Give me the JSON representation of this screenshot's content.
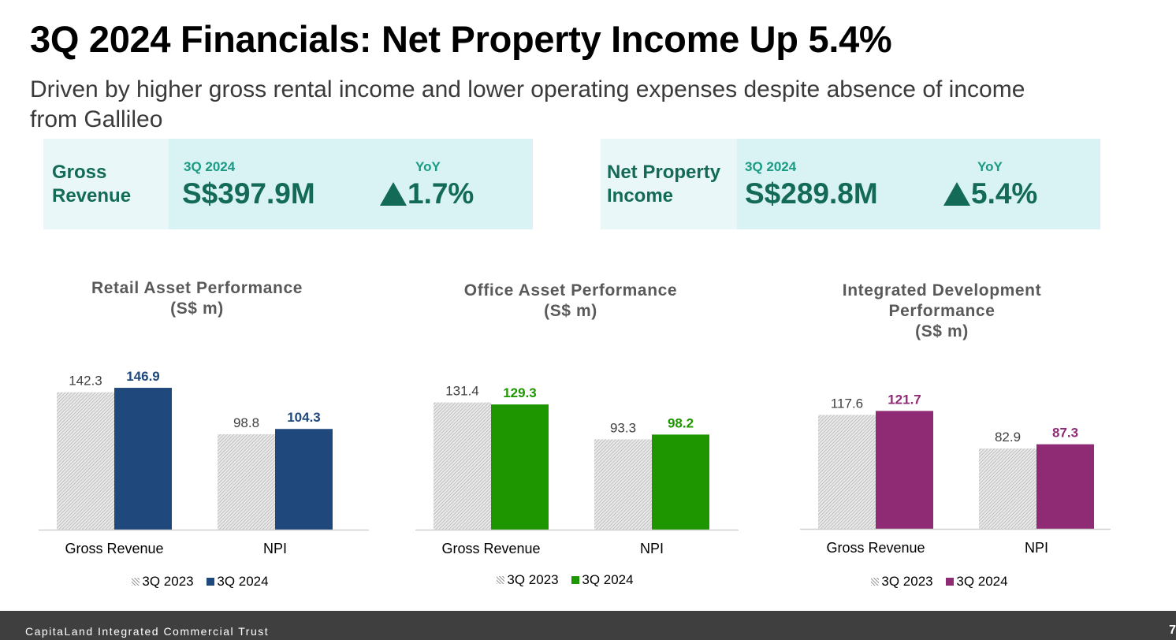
{
  "slide": {
    "title": "3Q 2024 Financials: Net Property Income Up 5.4%",
    "subtitle": "Driven by higher gross rental income and lower operating expenses despite absence of income from Gallileo",
    "kpis": [
      {
        "label_line1": "Gross",
        "label_line2": "Revenue",
        "period": "3Q 2024",
        "value": "S$397.9M",
        "yoy_label": "YoY",
        "change": "1.7%"
      },
      {
        "label_line1": "Net Property",
        "label_line2": "Income",
        "period": "3Q 2024",
        "value": "S$289.8M",
        "yoy_label": "YoY",
        "change": "5.4%"
      }
    ],
    "footer": {
      "brand": "CapitaLand Integrated Commercial Trust",
      "page": "7"
    }
  },
  "colors": {
    "kpi_dark": "#136a57",
    "kpi_accent": "#1a9a83",
    "retail": "#1f497d",
    "office": "#1e9600",
    "integrated": "#8e2b74",
    "prior_year_pattern": "#b8b8b8"
  },
  "chart_data": [
    {
      "type": "bar",
      "title_lines": [
        "Retail Asset Performance",
        "(S$ m)"
      ],
      "categories": [
        "Gross Revenue",
        "NPI"
      ],
      "series": [
        {
          "name": "3Q 2023",
          "values": [
            142.3,
            98.8
          ],
          "style": "hatched"
        },
        {
          "name": "3Q 2024",
          "values": [
            146.9,
            104.3
          ],
          "color": "#1f497d"
        }
      ],
      "legend_position": "bottom"
    },
    {
      "type": "bar",
      "title_lines": [
        "Office Asset Performance",
        "(S$ m)"
      ],
      "categories": [
        "Gross Revenue",
        "NPI"
      ],
      "series": [
        {
          "name": "3Q 2023",
          "values": [
            131.4,
            93.3
          ],
          "style": "hatched"
        },
        {
          "name": "3Q 2024",
          "values": [
            129.3,
            98.2
          ],
          "color": "#1e9600"
        }
      ],
      "legend_position": "bottom"
    },
    {
      "type": "bar",
      "title_lines": [
        "Integrated Development",
        "Performance",
        "(S$ m)"
      ],
      "categories": [
        "Gross Revenue",
        "NPI"
      ],
      "series": [
        {
          "name": "3Q 2023",
          "values": [
            117.6,
            82.9
          ],
          "style": "hatched"
        },
        {
          "name": "3Q 2024",
          "values": [
            121.7,
            87.3
          ],
          "color": "#8e2b74"
        }
      ],
      "legend_position": "bottom"
    }
  ]
}
